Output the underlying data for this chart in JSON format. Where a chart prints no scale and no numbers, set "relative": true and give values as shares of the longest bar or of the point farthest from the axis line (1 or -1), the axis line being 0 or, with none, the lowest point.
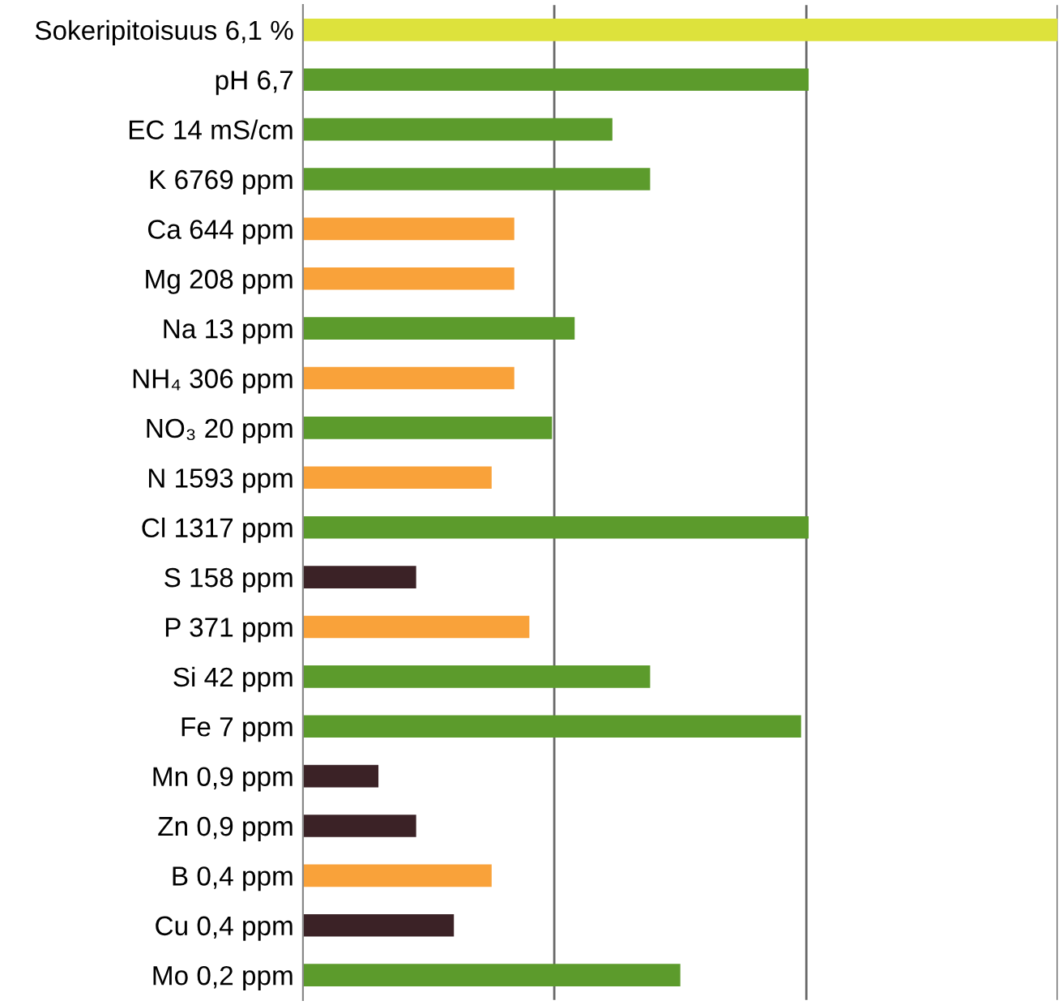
{
  "chart_data": {
    "type": "bar",
    "orientation": "horizontal",
    "relative": true,
    "categories": [
      "Sokeripitoisuus 6,1 %",
      "pH 6,7",
      "EC 14 mS/cm",
      "K 6769 ppm",
      "Ca 644 ppm",
      "Mg 208 ppm",
      "Na 13 ppm",
      "NH₄ 306 ppm",
      "NO₃ 20 ppm",
      "N 1593 ppm",
      "Cl 1317 ppm",
      "S 158 ppm",
      "P 371 ppm",
      "Si 42 ppm",
      "Fe 7 ppm",
      "Mn 0,9 ppm",
      "Zn 0,9 ppm",
      "B 0,4 ppm",
      "Cu 0,4 ppm",
      "Mo 0,2 ppm"
    ],
    "values": [
      1,
      0.67,
      0.41,
      0.46,
      0.28,
      0.28,
      0.36,
      0.28,
      0.33,
      0.25,
      0.67,
      0.15,
      0.3,
      0.46,
      0.66,
      0.1,
      0.15,
      0.25,
      0.2,
      0.5
    ],
    "colors": [
      "#dde23c",
      "#5c9b2c",
      "#5c9b2c",
      "#5c9b2c",
      "#f9a23a",
      "#f9a23a",
      "#5c9b2c",
      "#f9a23a",
      "#5c9b2c",
      "#f9a23a",
      "#5c9b2c",
      "#3b2226",
      "#f9a23a",
      "#5c9b2c",
      "#5c9b2c",
      "#3b2226",
      "#3b2226",
      "#f9a23a",
      "#3b2226",
      "#5c9b2c"
    ],
    "ref_lines": [
      {
        "axis": "x",
        "value": 0.333,
        "color": "#666666"
      },
      {
        "axis": "x",
        "value": 0.667,
        "color": "#666666"
      },
      {
        "axis": "x",
        "value": 1,
        "color": "#666666"
      }
    ]
  }
}
